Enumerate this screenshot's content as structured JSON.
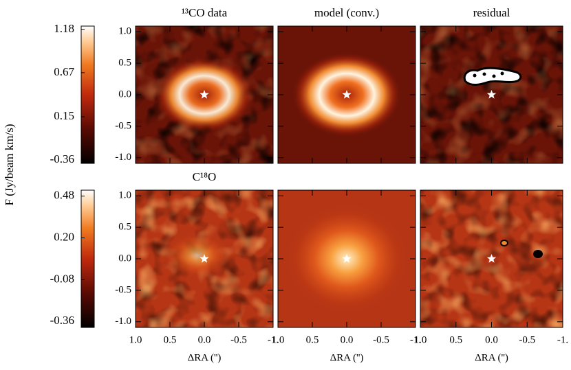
{
  "chart_data": [
    {
      "type": "image-row",
      "panels": [
        {
          "title": "¹³CO data",
          "kind": "data"
        },
        {
          "title": "model (conv.)",
          "kind": "model"
        },
        {
          "title": "residual",
          "kind": "residual"
        }
      ],
      "xlim": [
        1,
        -1
      ],
      "xticks": [
        {
          "value": 1,
          "label": "1.0"
        },
        0.5,
        {
          "value": 0,
          "label": "0.0"
        },
        -0.5,
        {
          "value": -1,
          "label": "-1."
        }
      ],
      "ylim": [
        -1.09,
        1.09
      ],
      "yticks": [
        {
          "value": 1,
          "label": "1.0"
        },
        0.5,
        {
          "value": 0,
          "label": "0.0"
        },
        -0.5,
        {
          "value": -1,
          "label": "-1.0"
        }
      ],
      "star": {
        "x": 0,
        "y": 0
      },
      "colorbar": {
        "lim": [
          -0.4,
          1.22
        ],
        "ticks": [
          1.18,
          0.67,
          0.15,
          -0.36
        ]
      }
    },
    {
      "type": "image-row",
      "panels": [
        {
          "title": "C¹⁸O",
          "kind": "data"
        },
        {
          "kind": "model"
        },
        {
          "kind": "residual"
        }
      ],
      "xlim": [
        1,
        -1
      ],
      "xticks": [
        {
          "value": 1,
          "label": "1.0"
        },
        0.5,
        {
          "value": 0,
          "label": "0.0"
        },
        -0.5,
        {
          "value": -1,
          "label": "-1."
        }
      ],
      "ylim": [
        -1.09,
        1.09
      ],
      "yticks": [
        {
          "value": 1,
          "label": "1.0"
        },
        0.5,
        {
          "value": 0,
          "label": "0.0"
        },
        -0.5,
        {
          "value": -1,
          "label": "-1.0"
        }
      ],
      "xlabel": "ΔRA ('')",
      "star": {
        "x": 0,
        "y": 0
      },
      "colorbar": {
        "lim": [
          -0.4,
          0.52
        ],
        "ticks": [
          0.48,
          {
            "value": 0.2,
            "label": "0.20"
          },
          -0.08,
          -0.36
        ]
      }
    }
  ],
  "colorbar_label": "F (Jy/beam km/s)"
}
